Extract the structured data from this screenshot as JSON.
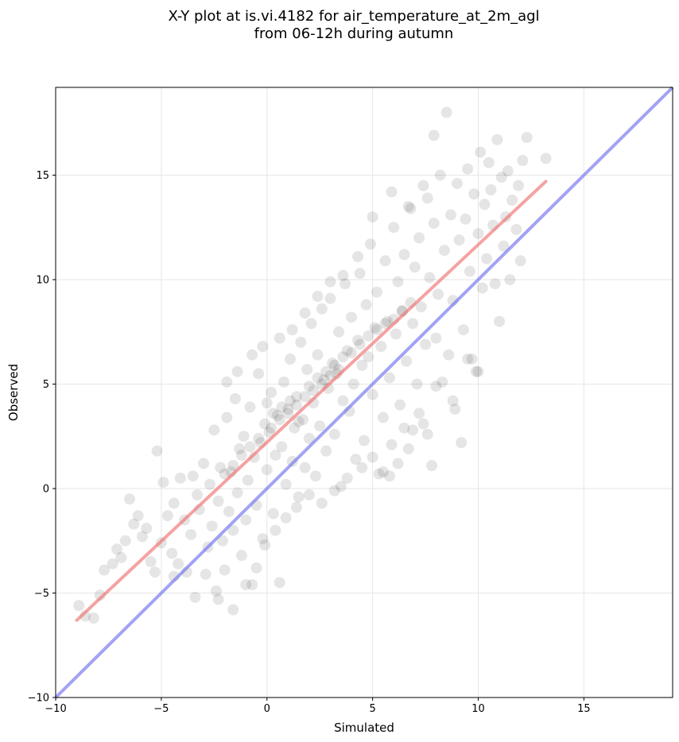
{
  "chart_data": {
    "type": "scatter",
    "title_lines": [
      "X-Y plot at is.vi.4182 for air_temperature_at_2m_agl",
      "from 06-12h during autumn"
    ],
    "xlabel": "Simulated",
    "ylabel": "Observed",
    "xlim": [
      -10,
      19.2
    ],
    "ylim": [
      -10,
      19.2
    ],
    "xticks": [
      -10,
      -5,
      0,
      5,
      10,
      15
    ],
    "yticks": [
      -10,
      -5,
      0,
      5,
      10,
      15
    ],
    "xtick_labels": [
      "−10",
      "−5",
      "0",
      "5",
      "10",
      "15"
    ],
    "ytick_labels": [
      "−10",
      "−5",
      "0",
      "5",
      "10",
      "15"
    ],
    "grid": true,
    "point_color": "#000000",
    "point_opacity": 0.1,
    "fit_line": {
      "color": "#f07070",
      "x": [
        -9,
        13.2
      ],
      "y": [
        -6.3,
        14.7
      ]
    },
    "identity_line": {
      "color": "#7070f0",
      "x": [
        -10,
        19.2
      ],
      "y": [
        -10,
        19.2
      ]
    },
    "points": [
      [
        -8.9,
        -5.6
      ],
      [
        -8.6,
        -6.1
      ],
      [
        -8.2,
        -6.2
      ],
      [
        -7.9,
        -5.1
      ],
      [
        -7.7,
        -3.9
      ],
      [
        -7.3,
        -3.6
      ],
      [
        -7.1,
        -2.9
      ],
      [
        -6.9,
        -3.3
      ],
      [
        -6.7,
        -2.5
      ],
      [
        -6.5,
        -0.5
      ],
      [
        -6.3,
        -1.7
      ],
      [
        -6.1,
        -1.3
      ],
      [
        -5.9,
        -2.3
      ],
      [
        -5.7,
        -1.9
      ],
      [
        -5.5,
        -3.5
      ],
      [
        -5.3,
        -4.0
      ],
      [
        -5.2,
        1.8
      ],
      [
        -5.0,
        -2.6
      ],
      [
        -4.9,
        0.3
      ],
      [
        -4.7,
        -1.3
      ],
      [
        -4.5,
        -3.1
      ],
      [
        -4.4,
        -0.7
      ],
      [
        -4.2,
        -3.6
      ],
      [
        -4.1,
        0.5
      ],
      [
        -3.9,
        -1.5
      ],
      [
        -3.8,
        -4.0
      ],
      [
        -3.6,
        -2.2
      ],
      [
        -3.5,
        0.6
      ],
      [
        -3.3,
        -0.3
      ],
      [
        -3.2,
        -1.0
      ],
      [
        -3.0,
        1.2
      ],
      [
        -2.9,
        -4.1
      ],
      [
        -2.8,
        -2.8
      ],
      [
        -2.7,
        0.2
      ],
      [
        -2.6,
        -1.8
      ],
      [
        -2.5,
        2.8
      ],
      [
        -2.4,
        -4.9
      ],
      [
        -2.3,
        -0.6
      ],
      [
        -2.2,
        1.0
      ],
      [
        -2.1,
        -2.5
      ],
      [
        -2.0,
        -3.9
      ],
      [
        -1.9,
        3.4
      ],
      [
        -1.8,
        -1.1
      ],
      [
        -1.7,
        0.8
      ],
      [
        -1.6,
        -2.0
      ],
      [
        -1.5,
        4.3
      ],
      [
        -1.4,
        -0.2
      ],
      [
        -1.3,
        1.9
      ],
      [
        -1.2,
        -3.2
      ],
      [
        -1.1,
        2.5
      ],
      [
        -1.0,
        -1.5
      ],
      [
        -0.9,
        0.4
      ],
      [
        -0.8,
        3.9
      ],
      [
        -0.7,
        -4.6
      ],
      [
        -0.6,
        1.5
      ],
      [
        -0.5,
        -0.8
      ],
      [
        -0.4,
        5.5
      ],
      [
        -0.3,
        2.2
      ],
      [
        -0.2,
        -2.4
      ],
      [
        -0.1,
        3.1
      ],
      [
        0.0,
        0.9
      ],
      [
        0.1,
        2.7
      ],
      [
        0.2,
        4.6
      ],
      [
        0.3,
        -1.2
      ],
      [
        0.4,
        1.6
      ],
      [
        0.5,
        3.5
      ],
      [
        0.6,
        -4.5
      ],
      [
        0.7,
        2.0
      ],
      [
        0.8,
        5.1
      ],
      [
        0.9,
        0.2
      ],
      [
        1.0,
        3.8
      ],
      [
        1.1,
        6.2
      ],
      [
        1.2,
        1.3
      ],
      [
        1.3,
        2.9
      ],
      [
        1.4,
        4.4
      ],
      [
        1.5,
        -0.4
      ],
      [
        1.6,
        7.0
      ],
      [
        1.7,
        3.3
      ],
      [
        1.8,
        1.0
      ],
      [
        1.9,
        5.7
      ],
      [
        2.0,
        2.4
      ],
      [
        2.1,
        7.9
      ],
      [
        2.2,
        4.1
      ],
      [
        2.3,
        0.6
      ],
      [
        2.4,
        6.4
      ],
      [
        2.5,
        3.0
      ],
      [
        2.6,
        8.6
      ],
      [
        2.7,
        5.2
      ],
      [
        2.8,
        1.8
      ],
      [
        2.9,
        4.8
      ],
      [
        3.0,
        9.1
      ],
      [
        3.1,
        6.0
      ],
      [
        3.2,
        2.6
      ],
      [
        3.3,
        5.5
      ],
      [
        3.4,
        7.5
      ],
      [
        3.5,
        0.1
      ],
      [
        3.6,
        4.2
      ],
      [
        3.7,
        9.8
      ],
      [
        3.8,
        6.6
      ],
      [
        3.9,
        3.7
      ],
      [
        4.0,
        8.2
      ],
      [
        4.1,
        5.0
      ],
      [
        4.2,
        1.4
      ],
      [
        4.3,
        7.1
      ],
      [
        4.4,
        10.3
      ],
      [
        4.5,
        5.9
      ],
      [
        4.6,
        2.3
      ],
      [
        4.7,
        8.8
      ],
      [
        4.8,
        6.3
      ],
      [
        4.9,
        11.7
      ],
      [
        5.0,
        4.5
      ],
      [
        5.1,
        7.7
      ],
      [
        5.2,
        9.4
      ],
      [
        5.3,
        0.7
      ],
      [
        5.4,
        6.8
      ],
      [
        5.5,
        3.4
      ],
      [
        5.6,
        10.9
      ],
      [
        5.7,
        8.0
      ],
      [
        5.8,
        5.3
      ],
      [
        5.9,
        2.1
      ],
      [
        6.0,
        12.5
      ],
      [
        6.1,
        7.4
      ],
      [
        6.2,
        9.9
      ],
      [
        6.3,
        4.0
      ],
      [
        6.4,
        8.5
      ],
      [
        6.5,
        11.2
      ],
      [
        6.6,
        6.1
      ],
      [
        6.7,
        1.9
      ],
      [
        6.8,
        13.4
      ],
      [
        6.9,
        7.9
      ],
      [
        7.0,
        10.6
      ],
      [
        7.1,
        5.0
      ],
      [
        7.2,
        12.0
      ],
      [
        7.3,
        8.7
      ],
      [
        7.4,
        3.1
      ],
      [
        7.5,
        6.9
      ],
      [
        7.6,
        13.9
      ],
      [
        7.7,
        10.1
      ],
      [
        7.8,
        1.1
      ],
      [
        7.9,
        12.7
      ],
      [
        8.0,
        7.2
      ],
      [
        8.1,
        9.3
      ],
      [
        8.2,
        15.0
      ],
      [
        8.3,
        5.1
      ],
      [
        8.4,
        11.4
      ],
      [
        8.5,
        18.0
      ],
      [
        8.6,
        6.4
      ],
      [
        8.7,
        13.1
      ],
      [
        8.8,
        9.0
      ],
      [
        8.9,
        3.8
      ],
      [
        9.0,
        14.6
      ],
      [
        9.1,
        11.9
      ],
      [
        9.2,
        2.2
      ],
      [
        9.3,
        7.6
      ],
      [
        9.4,
        12.9
      ],
      [
        9.5,
        15.3
      ],
      [
        9.6,
        10.4
      ],
      [
        9.7,
        6.2
      ],
      [
        9.8,
        14.1
      ],
      [
        9.9,
        5.6
      ],
      [
        10.0,
        12.2
      ],
      [
        10.1,
        16.1
      ],
      [
        10.2,
        9.6
      ],
      [
        10.3,
        13.6
      ],
      [
        10.4,
        11.0
      ],
      [
        10.5,
        15.6
      ],
      [
        10.6,
        14.3
      ],
      [
        10.7,
        12.6
      ],
      [
        10.8,
        9.8
      ],
      [
        10.9,
        16.7
      ],
      [
        11.0,
        8.0
      ],
      [
        11.1,
        14.9
      ],
      [
        11.2,
        11.6
      ],
      [
        11.3,
        13.0
      ],
      [
        11.4,
        15.2
      ],
      [
        11.5,
        10.0
      ],
      [
        11.6,
        13.8
      ],
      [
        11.8,
        12.4
      ],
      [
        11.9,
        14.5
      ],
      [
        12.0,
        10.9
      ],
      [
        12.1,
        15.7
      ],
      [
        12.3,
        16.8
      ],
      [
        13.2,
        15.8
      ],
      [
        10.0,
        5.6
      ],
      [
        9.5,
        6.2
      ],
      [
        8.8,
        4.2
      ],
      [
        8.0,
        4.9
      ],
      [
        7.6,
        2.6
      ],
      [
        7.2,
        3.6
      ],
      [
        6.9,
        2.8
      ],
      [
        6.5,
        2.9
      ],
      [
        6.2,
        1.2
      ],
      [
        5.8,
        0.6
      ],
      [
        5.5,
        0.8
      ],
      [
        5.0,
        1.5
      ],
      [
        4.5,
        1.0
      ],
      [
        3.8,
        0.5
      ],
      [
        3.2,
        -0.1
      ],
      [
        2.6,
        -0.7
      ],
      [
        2.0,
        -0.3
      ],
      [
        1.4,
        -0.9
      ],
      [
        0.9,
        -1.4
      ],
      [
        0.4,
        -2.0
      ],
      [
        -0.1,
        -2.7
      ],
      [
        -0.5,
        -3.8
      ],
      [
        -1.0,
        -4.6
      ],
      [
        -1.6,
        -5.8
      ],
      [
        -2.3,
        -5.3
      ],
      [
        -3.4,
        -5.2
      ],
      [
        -4.4,
        -4.2
      ],
      [
        -1.9,
        5.1
      ],
      [
        -1.4,
        5.6
      ],
      [
        -0.7,
        6.4
      ],
      [
        -0.2,
        6.8
      ],
      [
        0.6,
        7.2
      ],
      [
        1.2,
        7.6
      ],
      [
        1.8,
        8.4
      ],
      [
        2.4,
        9.2
      ],
      [
        3.0,
        9.9
      ],
      [
        3.6,
        10.2
      ],
      [
        4.3,
        11.1
      ],
      [
        5.0,
        13.0
      ],
      [
        5.9,
        14.2
      ],
      [
        6.7,
        13.5
      ],
      [
        7.4,
        14.5
      ],
      [
        7.9,
        16.9
      ],
      [
        0.0,
        4.1
      ],
      [
        0.3,
        3.6
      ],
      [
        0.7,
        3.9
      ],
      [
        1.1,
        4.2
      ],
      [
        1.5,
        3.2
      ],
      [
        2.0,
        4.9
      ],
      [
        2.4,
        5.3
      ],
      [
        2.8,
        5.6
      ],
      [
        3.2,
        5.9
      ],
      [
        3.6,
        6.3
      ],
      [
        4.0,
        6.5
      ],
      [
        4.4,
        6.9
      ],
      [
        4.8,
        7.3
      ],
      [
        5.2,
        7.6
      ],
      [
        5.6,
        7.9
      ],
      [
        6.0,
        8.1
      ],
      [
        6.4,
        8.5
      ],
      [
        6.8,
        8.9
      ],
      [
        -0.4,
        2.4
      ],
      [
        -0.8,
        2.0
      ],
      [
        -1.2,
        1.6
      ],
      [
        -1.6,
        1.1
      ],
      [
        -2.0,
        0.7
      ],
      [
        0.2,
        2.9
      ],
      [
        0.6,
        3.3
      ],
      [
        1.0,
        3.6
      ],
      [
        1.4,
        4.0
      ],
      [
        1.8,
        4.4
      ],
      [
        2.2,
        4.7
      ],
      [
        2.6,
        5.0
      ],
      [
        3.0,
        5.4
      ],
      [
        3.4,
        5.7
      ]
    ]
  }
}
